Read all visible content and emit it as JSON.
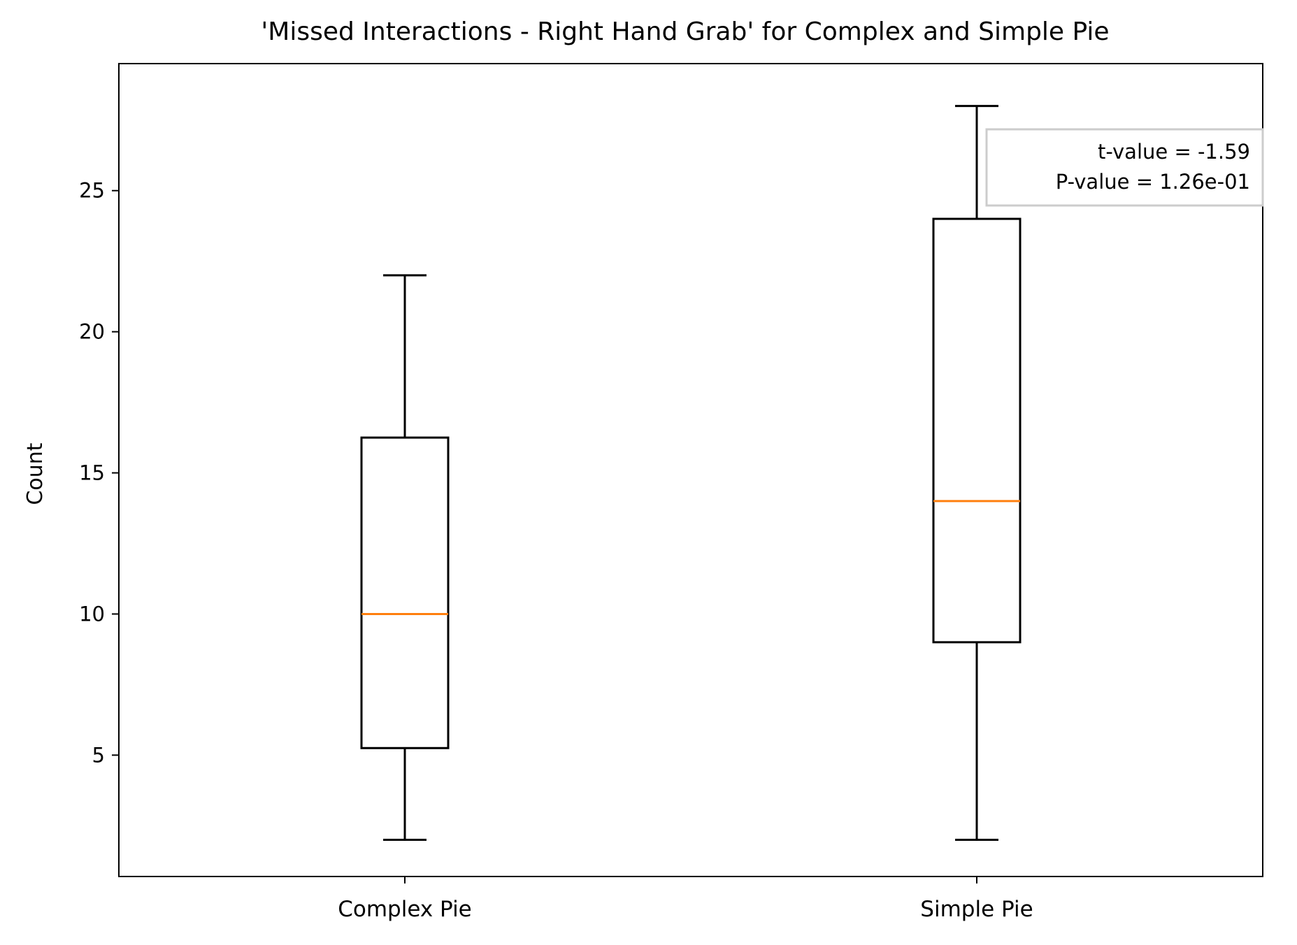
{
  "chart_data": {
    "type": "box",
    "title": "'Missed Interactions - Right Hand Grab' for Complex and Simple Pie",
    "xlabel": "",
    "ylabel": "Count",
    "ylim": [
      0.7,
      29.5
    ],
    "yticks": [
      5,
      10,
      15,
      20,
      25
    ],
    "grid": false,
    "categories": [
      "Complex Pie",
      "Simple Pie"
    ],
    "boxes": [
      {
        "category": "Complex Pie",
        "whisker_low": 2,
        "q1": 5.25,
        "median": 10,
        "q3": 16.25,
        "whisker_high": 22
      },
      {
        "category": "Simple Pie",
        "whisker_low": 2,
        "q1": 9,
        "median": 14,
        "q3": 24,
        "whisker_high": 28
      }
    ],
    "annotation": {
      "lines": [
        "t-value = -1.59",
        "P-value = 1.26e-01"
      ],
      "placement": "top-right"
    },
    "colors": {
      "box": "#000000",
      "median": "#ff7f0e",
      "annotation_border": "#cccccc"
    }
  }
}
